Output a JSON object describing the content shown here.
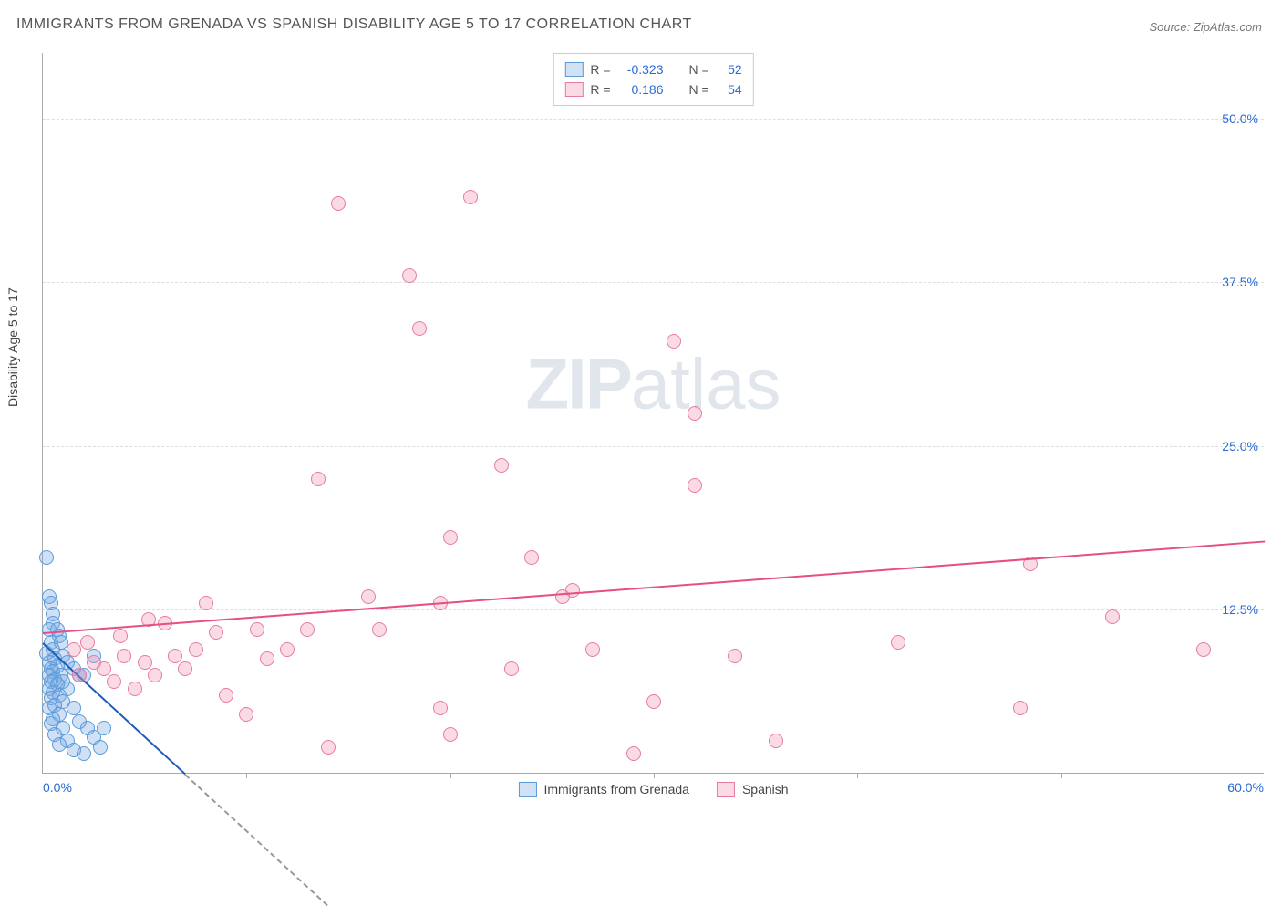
{
  "title": "IMMIGRANTS FROM GRENADA VS SPANISH DISABILITY AGE 5 TO 17 CORRELATION CHART",
  "source": "Source: ZipAtlas.com",
  "y_axis_title": "Disability Age 5 to 17",
  "watermark_a": "ZIP",
  "watermark_b": "atlas",
  "chart": {
    "type": "scatter",
    "xlim": [
      0,
      60
    ],
    "ylim": [
      0,
      55
    ],
    "x_ticks": [
      0,
      10,
      20,
      30,
      40,
      50,
      60
    ],
    "y_ticks": [
      12.5,
      25.0,
      37.5,
      50.0
    ],
    "x_tick_labels": [
      "0.0%",
      "",
      "",
      "",
      "",
      "",
      "60.0%"
    ],
    "y_tick_labels": [
      "12.5%",
      "25.0%",
      "37.5%",
      "50.0%"
    ],
    "background_color": "#ffffff",
    "grid_color": "#dddddd",
    "axis_color": "#aaaaaa",
    "label_color": "#2b6cd4",
    "marker_radius": 8,
    "marker_stroke": 1.5,
    "series": [
      {
        "name": "Immigrants from Grenada",
        "fill": "rgba(120,170,230,0.35)",
        "stroke": "#5a9bd8",
        "R_label": "R =",
        "R": "-0.323",
        "N_label": "N =",
        "N": "52",
        "trend": {
          "x1": 0,
          "y1": 10.0,
          "x2": 7.0,
          "y2": 0.0,
          "color": "#1e5bb8",
          "width": 2,
          "dash_extend_x": 7.0
        },
        "points": [
          [
            0.2,
            16.5
          ],
          [
            0.3,
            13.5
          ],
          [
            0.4,
            13.0
          ],
          [
            0.5,
            12.2
          ],
          [
            0.5,
            11.5
          ],
          [
            0.3,
            11.0
          ],
          [
            0.7,
            11.0
          ],
          [
            0.8,
            10.5
          ],
          [
            0.4,
            10.0
          ],
          [
            0.9,
            10.0
          ],
          [
            0.5,
            9.5
          ],
          [
            0.2,
            9.2
          ],
          [
            1.0,
            9.0
          ],
          [
            0.6,
            8.8
          ],
          [
            0.3,
            8.5
          ],
          [
            1.2,
            8.5
          ],
          [
            0.7,
            8.2
          ],
          [
            0.4,
            8.0
          ],
          [
            1.5,
            8.0
          ],
          [
            0.5,
            7.8
          ],
          [
            0.9,
            7.5
          ],
          [
            0.3,
            7.5
          ],
          [
            1.8,
            7.5
          ],
          [
            0.6,
            7.2
          ],
          [
            0.4,
            7.0
          ],
          [
            1.0,
            7.0
          ],
          [
            2.0,
            7.5
          ],
          [
            0.7,
            6.8
          ],
          [
            0.3,
            6.5
          ],
          [
            1.2,
            6.5
          ],
          [
            0.5,
            6.2
          ],
          [
            0.8,
            6.0
          ],
          [
            2.5,
            9.0
          ],
          [
            0.4,
            5.8
          ],
          [
            1.0,
            5.5
          ],
          [
            0.6,
            5.2
          ],
          [
            0.3,
            5.0
          ],
          [
            1.5,
            5.0
          ],
          [
            0.8,
            4.5
          ],
          [
            0.5,
            4.2
          ],
          [
            1.8,
            4.0
          ],
          [
            0.4,
            3.8
          ],
          [
            1.0,
            3.5
          ],
          [
            2.2,
            3.5
          ],
          [
            0.6,
            3.0
          ],
          [
            2.5,
            2.8
          ],
          [
            1.2,
            2.5
          ],
          [
            0.8,
            2.2
          ],
          [
            2.8,
            2.0
          ],
          [
            1.5,
            1.8
          ],
          [
            2.0,
            1.5
          ],
          [
            3.0,
            3.5
          ]
        ]
      },
      {
        "name": "Spanish",
        "fill": "rgba(240,150,180,0.35)",
        "stroke": "#e87ba2",
        "R_label": "R =",
        "R": "0.186",
        "N_label": "N =",
        "N": "54",
        "trend": {
          "x1": 0,
          "y1": 10.8,
          "x2": 60,
          "y2": 17.8,
          "color": "#e64e88",
          "width": 2
        },
        "points": [
          [
            14.5,
            43.5
          ],
          [
            21.0,
            44.0
          ],
          [
            18.0,
            38.0
          ],
          [
            18.5,
            34.0
          ],
          [
            31.0,
            33.0
          ],
          [
            13.5,
            22.5
          ],
          [
            32.0,
            27.5
          ],
          [
            22.5,
            23.5
          ],
          [
            24.0,
            16.5
          ],
          [
            32.0,
            22.0
          ],
          [
            20.0,
            18.0
          ],
          [
            26.0,
            14.0
          ],
          [
            19.5,
            13.0
          ],
          [
            16.0,
            13.5
          ],
          [
            16.5,
            11.0
          ],
          [
            13.0,
            11.0
          ],
          [
            10.5,
            11.0
          ],
          [
            8.5,
            10.8
          ],
          [
            9.0,
            6.0
          ],
          [
            7.5,
            9.5
          ],
          [
            6.5,
            9.0
          ],
          [
            11.0,
            8.8
          ],
          [
            5.0,
            8.5
          ],
          [
            7.0,
            8.0
          ],
          [
            4.0,
            9.0
          ],
          [
            3.0,
            8.0
          ],
          [
            2.5,
            8.5
          ],
          [
            1.8,
            7.5
          ],
          [
            3.5,
            7.0
          ],
          [
            5.5,
            7.5
          ],
          [
            1.5,
            9.5
          ],
          [
            2.2,
            10.0
          ],
          [
            48.5,
            16.0
          ],
          [
            52.5,
            12.0
          ],
          [
            57.0,
            9.5
          ],
          [
            42.0,
            10.0
          ],
          [
            34.0,
            9.0
          ],
          [
            48.0,
            5.0
          ],
          [
            30.0,
            5.5
          ],
          [
            36.0,
            2.5
          ],
          [
            29.0,
            1.5
          ],
          [
            20.0,
            3.0
          ],
          [
            19.5,
            5.0
          ],
          [
            14.0,
            2.0
          ],
          [
            27.0,
            9.5
          ],
          [
            10.0,
            4.5
          ],
          [
            6.0,
            11.5
          ],
          [
            8.0,
            13.0
          ],
          [
            12.0,
            9.5
          ],
          [
            4.5,
            6.5
          ],
          [
            3.8,
            10.5
          ],
          [
            5.2,
            11.8
          ],
          [
            23.0,
            8.0
          ],
          [
            25.5,
            13.5
          ]
        ]
      }
    ]
  }
}
